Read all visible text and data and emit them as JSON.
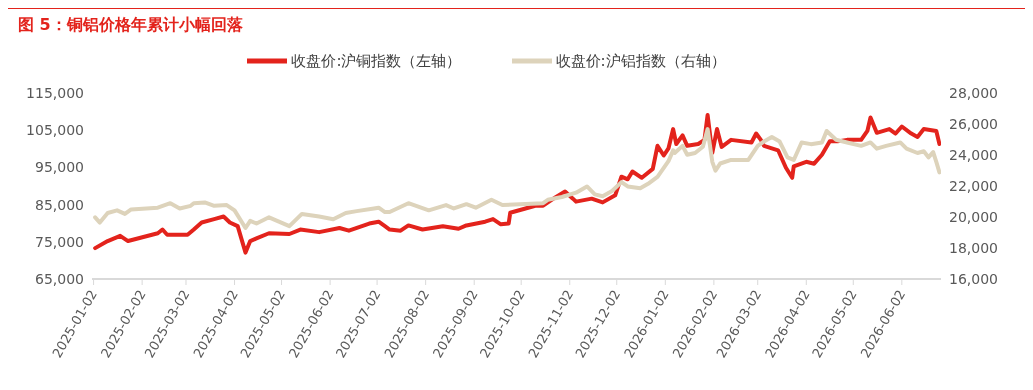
{
  "chart_data": {
    "type": "line",
    "title": "图 5：铜铝价格年累计小幅回落",
    "series": [
      {
        "name": "收盘价:沪铜指数（左轴）",
        "color": "#e3231c",
        "x": [
          "2025-01-03",
          "2025-01-11",
          "2025-01-19",
          "2025-01-24",
          "2025-02-12",
          "2025-02-15",
          "2025-02-18",
          "2025-03-03",
          "2025-03-07",
          "2025-03-12",
          "2025-03-20",
          "2025-03-26",
          "2025-03-30",
          "2025-04-04",
          "2025-04-09",
          "2025-04-12",
          "2025-04-16",
          "2025-04-24",
          "2025-05-07",
          "2025-05-14",
          "2025-05-26",
          "2025-06-08",
          "2025-06-14",
          "2025-06-27",
          "2025-07-03",
          "2025-07-07",
          "2025-07-10",
          "2025-07-17",
          "2025-07-22",
          "2025-07-31",
          "2025-08-13",
          "2025-08-23",
          "2025-08-28",
          "2025-09-09",
          "2025-09-14",
          "2025-09-19",
          "2025-09-24",
          "2025-09-25",
          "2025-10-11",
          "2025-10-16",
          "2025-10-24",
          "2025-10-30",
          "2025-11-04",
          "2025-11-06",
          "2025-11-16",
          "2025-11-23",
          "2025-12-01",
          "2025-12-05",
          "2025-12-09",
          "2025-12-12",
          "2025-12-18",
          "2025-12-25",
          "2025-12-28",
          "2026-01-01",
          "2026-01-04",
          "2026-01-07",
          "2026-01-09",
          "2026-01-13",
          "2026-01-16",
          "2026-01-23",
          "2026-01-27",
          "2026-01-29",
          "2026-02-01",
          "2026-02-04",
          "2026-02-07",
          "2026-02-13",
          "2026-02-26",
          "2026-03-01",
          "2026-03-04",
          "2026-03-06",
          "2026-03-15",
          "2026-03-20",
          "2026-03-24",
          "2026-03-25",
          "2026-04-02",
          "2026-04-07",
          "2026-04-12",
          "2026-04-17",
          "2026-04-22",
          "2026-04-28",
          "2026-05-07",
          "2026-05-11",
          "2026-05-13",
          "2026-05-17",
          "2026-05-25",
          "2026-05-29",
          "2026-06-02",
          "2026-06-08",
          "2026-06-12",
          "2026-06-16",
          "2026-06-24",
          "2026-06-26"
        ],
        "values": [
          73300,
          75200,
          76600,
          75200,
          77300,
          78300,
          76900,
          76900,
          78300,
          80200,
          81100,
          81800,
          80200,
          79200,
          72100,
          75200,
          75900,
          77300,
          77100,
          78300,
          77600,
          78700,
          78000,
          79900,
          80400,
          79200,
          78300,
          78000,
          79400,
          78300,
          79200,
          78500,
          79400,
          80400,
          81100,
          79700,
          79900,
          82800,
          84700,
          84700,
          87000,
          88500,
          86600,
          85800,
          86600,
          85600,
          87500,
          92500,
          91800,
          93900,
          92200,
          94600,
          100800,
          98200,
          100100,
          105300,
          101300,
          103600,
          100800,
          101300,
          102400,
          109100,
          98900,
          105300,
          100500,
          102400,
          101700,
          104100,
          102400,
          100800,
          99600,
          94900,
          92200,
          95300,
          96500,
          96000,
          98400,
          102000,
          102000,
          102400,
          102400,
          104800,
          108400,
          104300,
          105300,
          104100,
          106000,
          104100,
          103200,
          105300,
          104800,
          101300
        ]
      },
      {
        "name": "收盘价:沪铝指数（右轴）",
        "color": "#ddd3bb",
        "axis": "y2",
        "x": [
          "2025-01-03",
          "2025-01-06",
          "2025-01-11",
          "2025-01-17",
          "2025-01-22",
          "2025-01-26",
          "2025-02-12",
          "2025-02-20",
          "2025-02-26",
          "2025-03-05",
          "2025-03-07",
          "2025-03-14",
          "2025-03-20",
          "2025-03-28",
          "2025-04-02",
          "2025-04-09",
          "2025-04-12",
          "2025-04-16",
          "2025-04-24",
          "2025-05-07",
          "2025-05-15",
          "2025-05-26",
          "2025-06-04",
          "2025-06-12",
          "2025-06-19",
          "2025-06-30",
          "2025-07-03",
          "2025-07-07",
          "2025-07-10",
          "2025-07-22",
          "2025-08-04",
          "2025-08-15",
          "2025-08-20",
          "2025-08-28",
          "2025-09-03",
          "2025-09-13",
          "2025-09-20",
          "2025-10-16",
          "2025-10-19",
          "2025-10-28",
          "2025-11-06",
          "2025-11-13",
          "2025-11-18",
          "2025-11-23",
          "2025-11-29",
          "2025-12-05",
          "2025-12-09",
          "2025-12-17",
          "2025-12-22",
          "2025-12-28",
          "2026-01-04",
          "2026-01-07",
          "2026-01-08",
          "2026-01-13",
          "2026-01-16",
          "2026-01-21",
          "2026-01-26",
          "2026-01-29",
          "2026-02-01",
          "2026-02-03",
          "2026-02-06",
          "2026-02-13",
          "2026-02-24",
          "2026-03-02",
          "2026-03-06",
          "2026-03-11",
          "2026-03-16",
          "2026-03-21",
          "2026-03-25",
          "2026-03-30",
          "2026-04-05",
          "2026-04-12",
          "2026-04-15",
          "2026-04-21",
          "2026-04-28",
          "2026-05-07",
          "2026-05-13",
          "2026-05-17",
          "2026-05-23",
          "2026-06-01",
          "2026-06-05",
          "2026-06-12",
          "2026-06-16",
          "2026-06-19",
          "2026-06-22",
          "2026-06-24",
          "2026-06-26"
        ],
        "values": [
          19980,
          19640,
          20260,
          20430,
          20200,
          20490,
          20600,
          20890,
          20550,
          20720,
          20890,
          20940,
          20720,
          20770,
          20430,
          19290,
          19750,
          19580,
          19980,
          19410,
          20200,
          20030,
          19860,
          20260,
          20380,
          20550,
          20600,
          20320,
          20320,
          20890,
          20430,
          20770,
          20550,
          20830,
          20600,
          21110,
          20770,
          20890,
          21110,
          21290,
          21570,
          21970,
          21460,
          21340,
          21680,
          22250,
          21970,
          21850,
          22140,
          22590,
          23600,
          24300,
          24130,
          24590,
          24020,
          24130,
          24530,
          25670,
          23560,
          22990,
          23450,
          23680,
          23680,
          24590,
          24870,
          25160,
          24870,
          23850,
          23680,
          24810,
          24700,
          24810,
          25550,
          24980,
          24810,
          24590,
          24810,
          24410,
          24590,
          24810,
          24410,
          24130,
          24240,
          23850,
          24190,
          23560,
          22880
        ]
      }
    ],
    "xlim": [
      "2025-01-01",
      "2026-06-27"
    ],
    "xticks": [
      "2025-01-02",
      "2025-02-02",
      "2025-03-02",
      "2025-04-02",
      "2025-05-02",
      "2025-06-02",
      "2025-07-02",
      "2025-08-02",
      "2025-09-02",
      "2025-10-02",
      "2025-11-02",
      "2025-12-02",
      "2026-01-02",
      "2026-02-02",
      "2026-03-02",
      "2026-04-02",
      "2026-05-02",
      "2026-06-02"
    ],
    "ylim": [
      65000,
      115000
    ],
    "yticks": [
      {
        "value": 65000,
        "label": "65,000"
      },
      {
        "value": 75000,
        "label": "75,000"
      },
      {
        "value": 85000,
        "label": "85,000"
      },
      {
        "value": 95000,
        "label": "95,000"
      },
      {
        "value": 105000,
        "label": "105,000"
      },
      {
        "value": 115000,
        "label": "115,000"
      }
    ],
    "y2lim": [
      16000,
      28000
    ],
    "y2ticks": [
      {
        "value": 16000,
        "label": "16,000"
      },
      {
        "value": 18000,
        "label": "18,000"
      },
      {
        "value": 20000,
        "label": "20,000"
      },
      {
        "value": 22000,
        "label": "22,000"
      },
      {
        "value": 24000,
        "label": "24,000"
      },
      {
        "value": 26000,
        "label": "26,000"
      },
      {
        "value": 28000,
        "label": "28,000"
      }
    ],
    "legend": "top",
    "grid": false,
    "marker": "none",
    "line_style": "solid"
  }
}
